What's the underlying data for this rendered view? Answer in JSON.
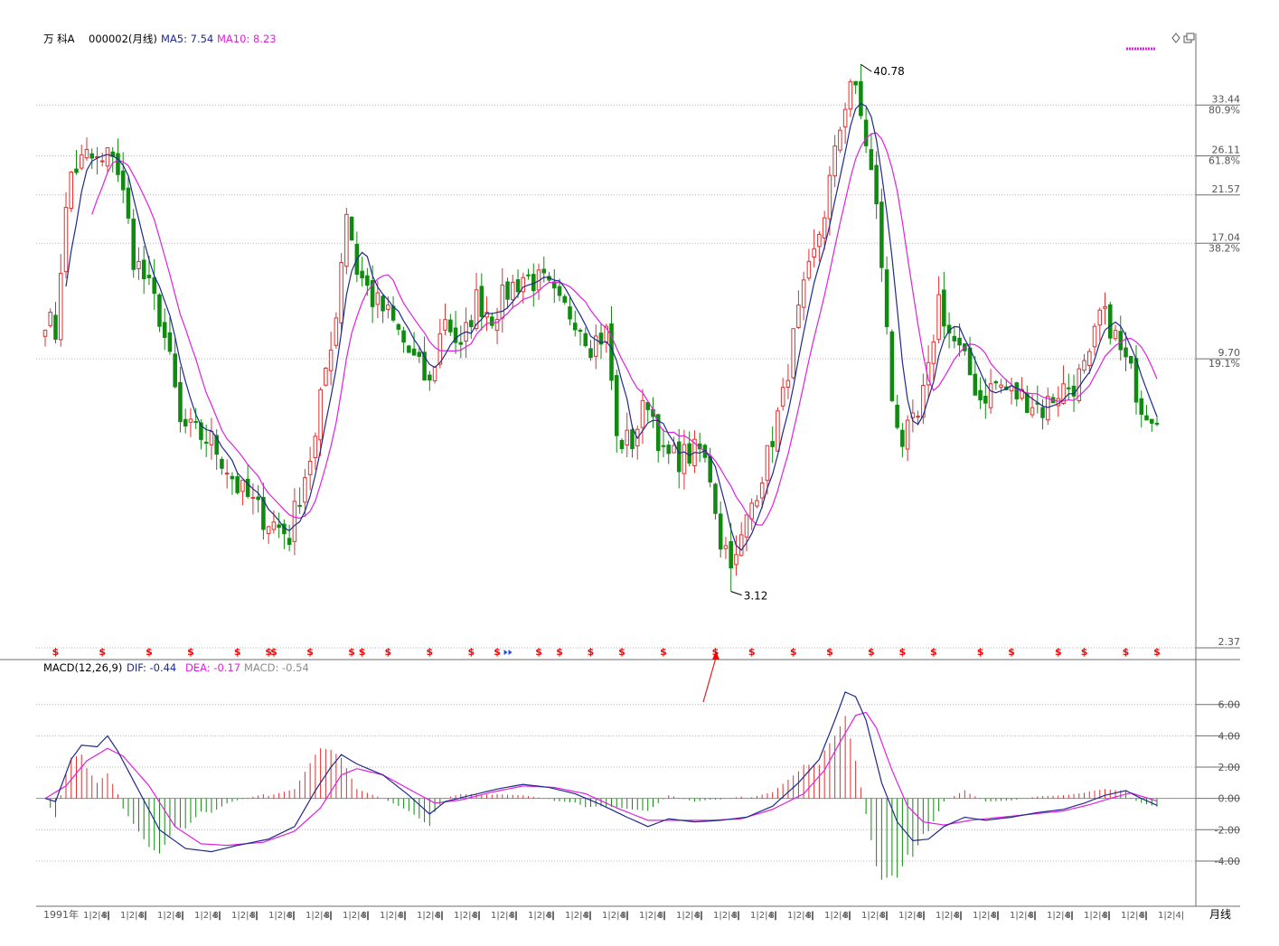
{
  "colors": {
    "up": "#e03030",
    "down": "#108a10",
    "ma5": "#1f2a8c",
    "ma10": "#e020e0",
    "dif": "#1f2a8c",
    "dea": "#e020e0",
    "macd_text": "#8c8c8c",
    "grid": "#b4b4b4",
    "axis": "#6e6e6e",
    "marker": "#ff0000",
    "signal_blue": "#2050d0"
  },
  "chart_data": [
    {
      "type": "candlestick",
      "panel": "price",
      "header": {
        "name": "万 科A",
        "code": "000002(月线)",
        "ma5_label": "MA5: 7.54",
        "ma10_label": "MA10: 8.23"
      },
      "y_scale": "log",
      "ylim": [
        2.37,
        44
      ],
      "y_ticks": [
        {
          "value": 33.44,
          "label": "33.44",
          "pct": "80.9%"
        },
        {
          "value": 26.11,
          "label": "26.11",
          "pct": "61.8%"
        },
        {
          "value": 21.57,
          "label": "21.57",
          "pct": ""
        },
        {
          "value": 17.04,
          "label": "17.04",
          "pct": "38.2%"
        },
        {
          "value": 9.7,
          "label": "9.70",
          "pct": "19.1%"
        },
        {
          "value": 2.37,
          "label": "2.37",
          "pct": ""
        }
      ],
      "annotations": [
        {
          "label": "40.78",
          "value": 40.78,
          "kind": "high"
        },
        {
          "label": "3.12",
          "value": 3.12,
          "kind": "low"
        }
      ],
      "anchors": [
        [
          0,
          12
        ],
        [
          2,
          11
        ],
        [
          5,
          24
        ],
        [
          8,
          26
        ],
        [
          11,
          25
        ],
        [
          13,
          27
        ],
        [
          17,
          16
        ],
        [
          22,
          12
        ],
        [
          26,
          7
        ],
        [
          32,
          6.5
        ],
        [
          37,
          5.2
        ],
        [
          42,
          4.5
        ],
        [
          47,
          4.1
        ],
        [
          52,
          6.5
        ],
        [
          56,
          12
        ],
        [
          58,
          20
        ],
        [
          60,
          15
        ],
        [
          63,
          13
        ],
        [
          66,
          12
        ],
        [
          70,
          10
        ],
        [
          74,
          8.5
        ],
        [
          77,
          12
        ],
        [
          80,
          10
        ],
        [
          83,
          13
        ],
        [
          86,
          12
        ],
        [
          89,
          13.5
        ],
        [
          92,
          14.5
        ],
        [
          96,
          14
        ],
        [
          99,
          12.5
        ],
        [
          102,
          12
        ],
        [
          105,
          10.5
        ],
        [
          108,
          11
        ],
        [
          110,
          6.5
        ],
        [
          113,
          6.5
        ],
        [
          116,
          8
        ],
        [
          119,
          6
        ],
        [
          122,
          6
        ],
        [
          126,
          6.2
        ],
        [
          128,
          5.5
        ],
        [
          130,
          4
        ],
        [
          133,
          3.6
        ],
        [
          136,
          4.8
        ],
        [
          139,
          6
        ],
        [
          142,
          8
        ],
        [
          145,
          12
        ],
        [
          148,
          16
        ],
        [
          150,
          20
        ],
        [
          152,
          26
        ],
        [
          154,
          34
        ],
        [
          155,
          38
        ],
        [
          156,
          35
        ],
        [
          158,
          28
        ],
        [
          160,
          20
        ],
        [
          162,
          11
        ],
        [
          163,
          8
        ],
        [
          165,
          6.5
        ],
        [
          168,
          7.2
        ],
        [
          170,
          9
        ],
        [
          172,
          13
        ],
        [
          174,
          11
        ],
        [
          177,
          9.5
        ],
        [
          180,
          8
        ],
        [
          183,
          8.6
        ],
        [
          186,
          8.2
        ],
        [
          189,
          8
        ],
        [
          192,
          7.6
        ],
        [
          195,
          8.3
        ],
        [
          198,
          8.6
        ],
        [
          201,
          9.5
        ],
        [
          203,
          12
        ],
        [
          205,
          11.5
        ],
        [
          207,
          10
        ],
        [
          209,
          9
        ],
        [
          211,
          7.8
        ],
        [
          213,
          7.5
        ],
        [
          214,
          7.5
        ]
      ],
      "signal_row": "$ (buy/sell signal markers)"
    },
    {
      "type": "line+bar",
      "panel": "macd",
      "header": {
        "title": "MACD(12,26,9)",
        "dif_label": "DIF: -0.44",
        "dea_label": "DEA: -0.17",
        "macd_label": "MACD: -0.54"
      },
      "ylim": [
        -6.6,
        7.6
      ],
      "y_ticks": [
        6,
        4,
        2,
        0,
        -2,
        -4
      ],
      "y_tick_labels": [
        "6.00",
        "4.00",
        "2.00",
        "0.00",
        "-2.00",
        "-4.00"
      ],
      "dif_anchors": [
        [
          0,
          0
        ],
        [
          2,
          -0.2
        ],
        [
          5,
          2.5
        ],
        [
          7,
          3.4
        ],
        [
          10,
          3.3
        ],
        [
          12,
          4.0
        ],
        [
          14,
          3.0
        ],
        [
          18,
          0.5
        ],
        [
          22,
          -2.0
        ],
        [
          27,
          -3.2
        ],
        [
          32,
          -3.4
        ],
        [
          37,
          -3.0
        ],
        [
          43,
          -2.6
        ],
        [
          48,
          -1.8
        ],
        [
          52,
          0.5
        ],
        [
          55,
          2.0
        ],
        [
          57,
          2.8
        ],
        [
          60,
          2.2
        ],
        [
          65,
          1.5
        ],
        [
          70,
          0.2
        ],
        [
          74,
          -1.0
        ],
        [
          77,
          -0.2
        ],
        [
          82,
          0.2
        ],
        [
          87,
          0.6
        ],
        [
          92,
          0.9
        ],
        [
          97,
          0.7
        ],
        [
          102,
          0.3
        ],
        [
          107,
          -0.4
        ],
        [
          112,
          -1.2
        ],
        [
          116,
          -1.8
        ],
        [
          120,
          -1.3
        ],
        [
          125,
          -1.5
        ],
        [
          130,
          -1.4
        ],
        [
          135,
          -1.2
        ],
        [
          140,
          -0.5
        ],
        [
          145,
          1.0
        ],
        [
          149,
          2.5
        ],
        [
          152,
          5.0
        ],
        [
          154,
          6.8
        ],
        [
          156,
          6.5
        ],
        [
          158,
          5.0
        ],
        [
          161,
          1.0
        ],
        [
          164,
          -1.5
        ],
        [
          167,
          -2.7
        ],
        [
          170,
          -2.6
        ],
        [
          173,
          -1.8
        ],
        [
          177,
          -1.2
        ],
        [
          181,
          -1.4
        ],
        [
          186,
          -1.2
        ],
        [
          191,
          -0.9
        ],
        [
          196,
          -0.7
        ],
        [
          200,
          -0.3
        ],
        [
          204,
          0.2
        ],
        [
          208,
          0.5
        ],
        [
          211,
          0.0
        ],
        [
          214,
          -0.44
        ]
      ],
      "dea_anchors": [
        [
          0,
          0
        ],
        [
          4,
          0.8
        ],
        [
          8,
          2.4
        ],
        [
          12,
          3.2
        ],
        [
          15,
          2.7
        ],
        [
          20,
          0.8
        ],
        [
          25,
          -1.8
        ],
        [
          30,
          -2.9
        ],
        [
          35,
          -3.0
        ],
        [
          42,
          -2.8
        ],
        [
          48,
          -2.1
        ],
        [
          53,
          -0.6
        ],
        [
          57,
          1.5
        ],
        [
          60,
          1.9
        ],
        [
          65,
          1.5
        ],
        [
          70,
          0.6
        ],
        [
          75,
          -0.3
        ],
        [
          80,
          -0.1
        ],
        [
          86,
          0.4
        ],
        [
          92,
          0.8
        ],
        [
          98,
          0.7
        ],
        [
          104,
          0.3
        ],
        [
          110,
          -0.6
        ],
        [
          116,
          -1.4
        ],
        [
          122,
          -1.4
        ],
        [
          128,
          -1.4
        ],
        [
          134,
          -1.3
        ],
        [
          140,
          -0.7
        ],
        [
          146,
          0.3
        ],
        [
          150,
          1.8
        ],
        [
          153,
          3.6
        ],
        [
          156,
          5.3
        ],
        [
          158,
          5.5
        ],
        [
          160,
          4.5
        ],
        [
          163,
          1.8
        ],
        [
          166,
          -0.5
        ],
        [
          169,
          -1.5
        ],
        [
          173,
          -1.7
        ],
        [
          178,
          -1.4
        ],
        [
          184,
          -1.2
        ],
        [
          190,
          -1.0
        ],
        [
          196,
          -0.8
        ],
        [
          201,
          -0.4
        ],
        [
          205,
          0.0
        ],
        [
          209,
          0.35
        ],
        [
          214,
          -0.17
        ]
      ],
      "hist_rule": "macd = 2 * (dif - dea); red above zero, green below zero"
    }
  ],
  "x_axis": {
    "start_label": "1991年",
    "month_ticks": [
      "1|2|4|",
      "8|",
      "1|2|4|",
      "8|"
    ],
    "n_bars": 215,
    "period_label": "月线"
  },
  "icons": {
    "top_right": [
      "diamond-icon",
      "window-restore-icon"
    ],
    "legend_marker": "ma-legend-dots-icon",
    "red_arrow": "red-arrow-annotation-icon",
    "signal_marker": "dollar-signal-icon"
  }
}
